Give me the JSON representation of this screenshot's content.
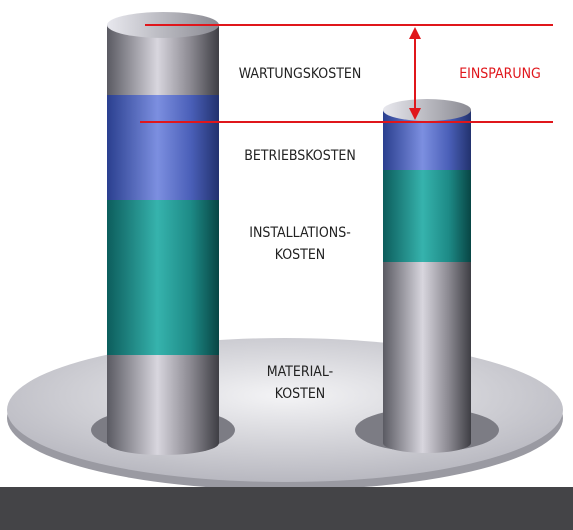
{
  "labels": {
    "maintenance": "WARTUNGSKOSTEN",
    "savings": "EINSPARUNG",
    "operating": "BETRIEBSKOSTEN",
    "installation": [
      "INSTALLATIONS-",
      "KOSTEN"
    ],
    "material": [
      "MATERIAL-",
      "KOSTEN"
    ]
  }
}
